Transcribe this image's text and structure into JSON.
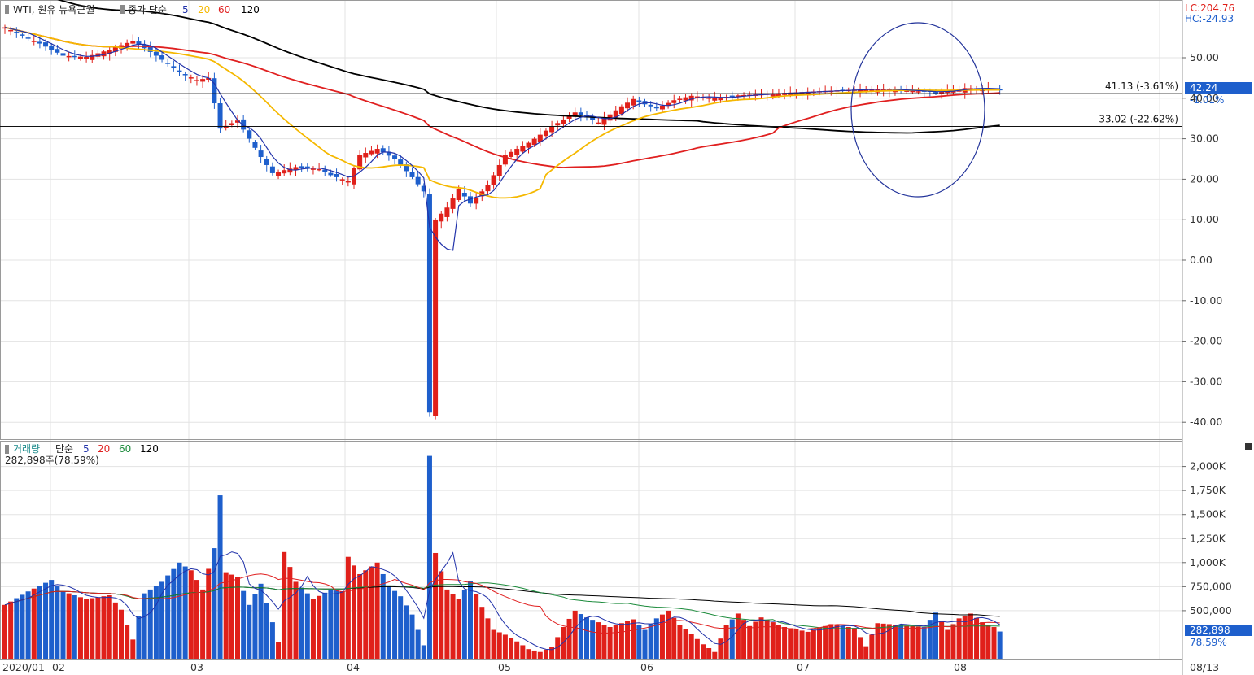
{
  "price_panel": {
    "legend": {
      "instrument": "WTI, 원유 뉴욕근월",
      "ma_label": "종가 단순",
      "periods": [
        "5",
        "20",
        "60",
        "120"
      ],
      "period_colors": [
        "#2233aa",
        "#f5b800",
        "#e02020",
        "#000000"
      ]
    },
    "lc_label": "LC:204.76",
    "hc_label": "HC:-24.93",
    "current_price": "42.24",
    "current_change": "-1.01%",
    "line_labels": [
      {
        "price": 41.13,
        "text": "41.13 (-3.61%)"
      },
      {
        "price": 33.02,
        "text": "33.02 (-22.62%)"
      }
    ],
    "y_ticks": [
      "50.00",
      "40.00",
      "30.00",
      "20.00",
      "10.00",
      "0.00",
      "-10.00",
      "-20.00",
      "-30.00",
      "-40.00"
    ]
  },
  "volume_panel": {
    "legend": {
      "title": "거래량",
      "ma_label": "단순",
      "periods": [
        "5",
        "20",
        "60",
        "120"
      ],
      "period_colors": [
        "#2233aa",
        "#e02020",
        "#1a8a3a",
        "#000000"
      ]
    },
    "current_info": "282,898주(78.59%)",
    "current_volume": "282,898",
    "current_pct": "78.59%",
    "y_ticks": [
      "2,000K",
      "1,750K",
      "1,500K",
      "1,250K",
      "1,000K",
      "750,000",
      "500,000"
    ]
  },
  "x_labels": [
    "2020/01",
    "02",
    "03",
    "04",
    "05",
    "06",
    "07",
    "08",
    "08/13"
  ],
  "colors": {
    "up": "#e0201a",
    "down": "#1e5fcc",
    "ma5": "#2233aa",
    "ma20": "#f5b800",
    "ma60": "#e02020",
    "ma120": "#000000",
    "vol_ma60": "#1a8a3a",
    "circle": "#22339a"
  },
  "chart_data": {
    "type": "candlestick",
    "title": "WTI, 원유 뉴욕근월",
    "price_keypoints": [
      [
        0,
        57.5
      ],
      [
        6,
        53.5
      ],
      [
        10,
        50.5
      ],
      [
        14,
        50.2
      ],
      [
        18,
        52.0
      ],
      [
        22,
        54.2
      ],
      [
        26,
        50.5
      ],
      [
        30,
        46.5
      ],
      [
        33,
        44.5
      ],
      [
        35,
        45.0
      ],
      [
        37,
        32.5
      ],
      [
        40,
        34.5
      ],
      [
        44,
        25.5
      ],
      [
        46,
        21.5
      ],
      [
        50,
        23.0
      ],
      [
        54,
        22.5
      ],
      [
        56,
        21.0
      ],
      [
        59,
        19.5
      ],
      [
        61,
        26.0
      ],
      [
        64,
        27.5
      ],
      [
        67,
        25.0
      ],
      [
        70,
        20.5
      ],
      [
        72,
        17.0
      ],
      [
        73,
        -37.6
      ],
      [
        74,
        10.0
      ],
      [
        76,
        13.0
      ],
      [
        78,
        17.5
      ],
      [
        80,
        14.0
      ],
      [
        83,
        18.5
      ],
      [
        86,
        26.0
      ],
      [
        90,
        29.0
      ],
      [
        94,
        33.0
      ],
      [
        98,
        36.5
      ],
      [
        102,
        34.0
      ],
      [
        106,
        38.0
      ],
      [
        108,
        39.8
      ],
      [
        110,
        38.5
      ],
      [
        112,
        37.5
      ],
      [
        115,
        39.5
      ],
      [
        118,
        40.6
      ],
      [
        122,
        40.0
      ],
      [
        126,
        40.7
      ],
      [
        132,
        41.2
      ],
      [
        138,
        41.6
      ],
      [
        144,
        42.0
      ],
      [
        150,
        42.3
      ],
      [
        156,
        41.8
      ],
      [
        160,
        41.5
      ],
      [
        165,
        42.5
      ],
      [
        169,
        42.4
      ],
      [
        171,
        42.2
      ]
    ],
    "volume_keypoints": [
      [
        0,
        560
      ],
      [
        4,
        700
      ],
      [
        8,
        820
      ],
      [
        10,
        700
      ],
      [
        14,
        620
      ],
      [
        18,
        660
      ],
      [
        20,
        510
      ],
      [
        22,
        200
      ],
      [
        24,
        680
      ],
      [
        27,
        800
      ],
      [
        30,
        1000
      ],
      [
        32,
        920
      ],
      [
        34,
        720
      ],
      [
        36,
        1150
      ],
      [
        37,
        1700
      ],
      [
        38,
        900
      ],
      [
        40,
        850
      ],
      [
        42,
        560
      ],
      [
        44,
        780
      ],
      [
        46,
        380
      ],
      [
        47,
        170
      ],
      [
        48,
        1110
      ],
      [
        50,
        800
      ],
      [
        53,
        620
      ],
      [
        56,
        720
      ],
      [
        58,
        700
      ],
      [
        59,
        1060
      ],
      [
        61,
        880
      ],
      [
        64,
        1000
      ],
      [
        66,
        760
      ],
      [
        68,
        650
      ],
      [
        70,
        460
      ],
      [
        72,
        140
      ],
      [
        73,
        2110
      ],
      [
        74,
        1100
      ],
      [
        76,
        720
      ],
      [
        78,
        620
      ],
      [
        80,
        810
      ],
      [
        82,
        540
      ],
      [
        84,
        300
      ],
      [
        86,
        250
      ],
      [
        88,
        180
      ],
      [
        90,
        100
      ],
      [
        92,
        70
      ],
      [
        94,
        120
      ],
      [
        96,
        330
      ],
      [
        98,
        500
      ],
      [
        100,
        430
      ],
      [
        104,
        330
      ],
      [
        108,
        410
      ],
      [
        110,
        300
      ],
      [
        112,
        420
      ],
      [
        114,
        500
      ],
      [
        116,
        350
      ],
      [
        118,
        260
      ],
      [
        120,
        150
      ],
      [
        122,
        70
      ],
      [
        124,
        350
      ],
      [
        126,
        470
      ],
      [
        128,
        340
      ],
      [
        130,
        430
      ],
      [
        134,
        330
      ],
      [
        138,
        280
      ],
      [
        142,
        360
      ],
      [
        146,
        320
      ],
      [
        148,
        130
      ],
      [
        150,
        370
      ],
      [
        154,
        350
      ],
      [
        158,
        330
      ],
      [
        160,
        480
      ],
      [
        162,
        300
      ],
      [
        164,
        420
      ],
      [
        166,
        470
      ],
      [
        168,
        380
      ],
      [
        170,
        330
      ],
      [
        171,
        283
      ]
    ],
    "moving_average_periods": [
      5,
      20,
      60,
      120
    ],
    "trend_lines": [
      41.13,
      33.02
    ],
    "ylim_price": [
      -42,
      60
    ],
    "ylim_volume": [
      0,
      2200
    ],
    "grid": true
  }
}
